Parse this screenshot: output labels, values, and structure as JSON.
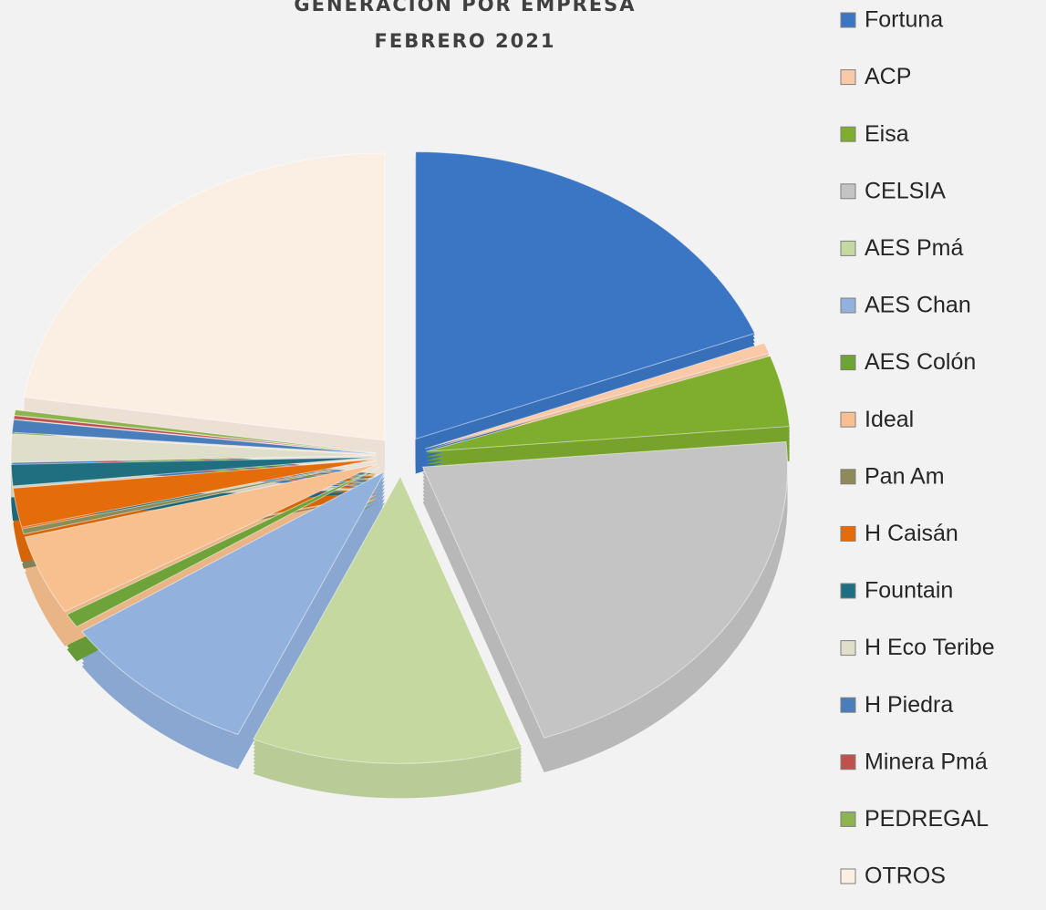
{
  "chart_data": {
    "type": "pie",
    "title": "GENERACIÓN POR EMPRESA",
    "subtitle": "FEBRERO 2021",
    "categories": [
      "Fortuna",
      "ACP",
      "Eisa",
      "CELSIA",
      "AES Pmá",
      "AES Chan",
      "AES Colón",
      "Ideal",
      "Pan Am",
      "H  Caisán",
      "Fountain",
      "H Eco Teribe",
      "H  Piedra",
      "Minera Pmá",
      "PEDREGAL",
      "OTROS"
    ],
    "values": [
      19,
      0.6,
      4,
      21,
      12,
      9,
      0.8,
      4.5,
      0.3,
      2.2,
      1.2,
      1.6,
      0.7,
      0.2,
      0.3,
      22.6
    ],
    "colors": [
      "#3b76c4",
      "#f9c9a8",
      "#7fad2e",
      "#c4c4c4",
      "#c5d8a0",
      "#92b2dd",
      "#6ea33a",
      "#f8c08f",
      "#8d8b5a",
      "#e46c0a",
      "#1f6f80",
      "#dedecb",
      "#4a7ebb",
      "#c0504d",
      "#8eb44e",
      "#fbeee3"
    ],
    "legend": "right"
  }
}
